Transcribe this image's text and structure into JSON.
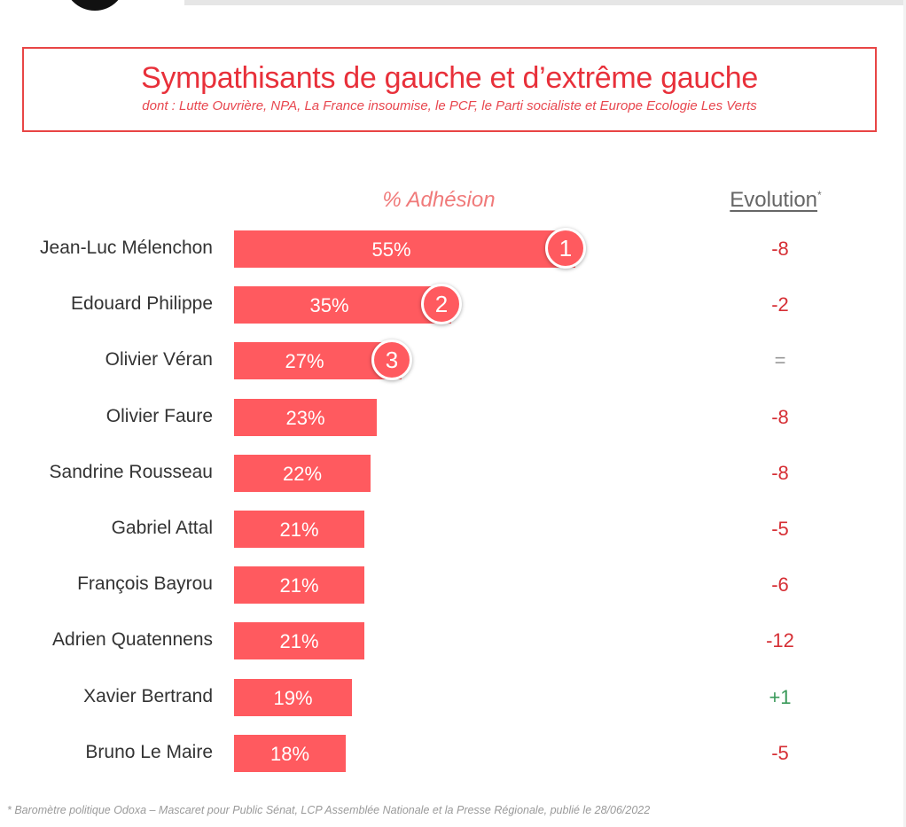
{
  "header": {
    "title": "Sympathisants de gauche et d’extrême gauche",
    "subtitle": "dont : Lutte Ouvrière, NPA, La France insoumise, le PCF, le Parti socialiste et Europe Ecologie Les Verts"
  },
  "columns": {
    "adhesion": "% Adhésion",
    "evolution": "Evolution",
    "evolution_mark": "*"
  },
  "chart_data": {
    "type": "bar",
    "orientation": "horizontal",
    "categories": [
      "Jean-Luc Mélenchon",
      "Edouard Philippe",
      "Olivier Véran",
      "Olivier Faure",
      "Sandrine Rousseau",
      "Gabriel Attal",
      "François Bayrou",
      "Adrien Quatennens",
      "Xavier Bertrand",
      "Bruno Le Maire"
    ],
    "values": [
      55,
      35,
      27,
      23,
      22,
      21,
      21,
      21,
      19,
      18
    ],
    "value_labels": [
      "55%",
      "35%",
      "27%",
      "23%",
      "22%",
      "21%",
      "21%",
      "21%",
      "19%",
      "18%"
    ],
    "ranks": [
      "1",
      "2",
      "3"
    ],
    "evolution": [
      "-8",
      "-2",
      "=",
      "-8",
      "-8",
      "-5",
      "-6",
      "-12",
      "+1",
      "-5"
    ],
    "xlim": [
      0,
      100
    ],
    "bar_color": "#ff5a5f",
    "grid": false
  },
  "colors": {
    "negative": "#d62f35",
    "neutral": "#999999",
    "positive": "#3a9a5a"
  },
  "footnote": "* Baromètre politique Odoxa – Mascaret pour Public Sénat, LCP Assemblée Nationale et la Presse Régionale, publié le 28/06/2022"
}
